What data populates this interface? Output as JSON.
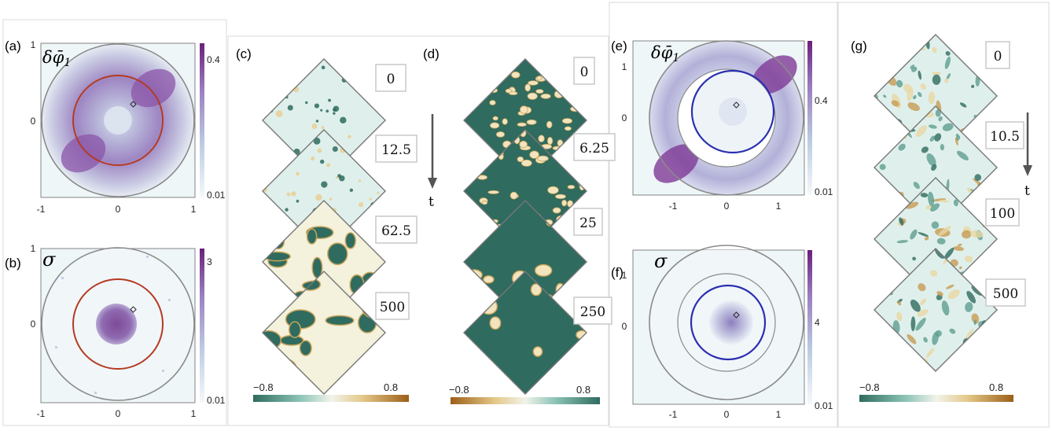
{
  "figure": {
    "panel_labels": [
      "(a)",
      "(b)",
      "(c)",
      "(d)",
      "(e)",
      "(f)",
      "(g)"
    ],
    "symbols": {
      "delta_phi": "δφ̄",
      "subscript_one": "1",
      "sigma": "σ"
    },
    "time_arrow_label": "t",
    "colors": {
      "field_negative": "#2f6b5f",
      "field_mid": "#dff0ec",
      "field_light": "#f4f1dc",
      "field_positive": "#a86a1c",
      "map_low": "#eef6f8",
      "map_high": "#7d2a86",
      "ring_red": "#b43b22",
      "ring_blue": "#2a2fb0",
      "ring_gray": "#8a8a8a"
    }
  },
  "map_panels": {
    "a": {
      "x_ticks": [
        "-1",
        "0",
        "1"
      ],
      "y_ticks": [
        "1",
        "0"
      ],
      "colorbar_ticks": [
        "0.4",
        "0.01"
      ]
    },
    "b": {
      "x_ticks": [
        "-1",
        "0",
        "1"
      ],
      "y_ticks": [
        "1",
        "0"
      ],
      "colorbar_ticks": [
        "3",
        "0.01"
      ]
    },
    "e": {
      "x_ticks": [
        "-1",
        "0",
        "1"
      ],
      "y_ticks": [
        "1",
        "0"
      ],
      "colorbar_ticks": [
        "0.4",
        "0.01"
      ]
    },
    "f": {
      "x_ticks": [
        "-1",
        "0",
        "1"
      ],
      "y_ticks": [
        "1",
        "0"
      ],
      "colorbar_ticks": [
        "4",
        "0.01"
      ]
    }
  },
  "snapshot_panels": {
    "c": {
      "times": [
        "0",
        "12.5",
        "62.5",
        "500"
      ],
      "colorbar_ticks": [
        "−0.8",
        "0.8"
      ]
    },
    "d": {
      "times": [
        "0",
        "6.25",
        "25",
        "250"
      ],
      "colorbar_ticks": [
        "−0.8",
        "0.8"
      ]
    },
    "g": {
      "times": [
        "0",
        "10.5",
        "100",
        "500"
      ],
      "colorbar_ticks": [
        "−0.8",
        "0.8"
      ]
    }
  }
}
